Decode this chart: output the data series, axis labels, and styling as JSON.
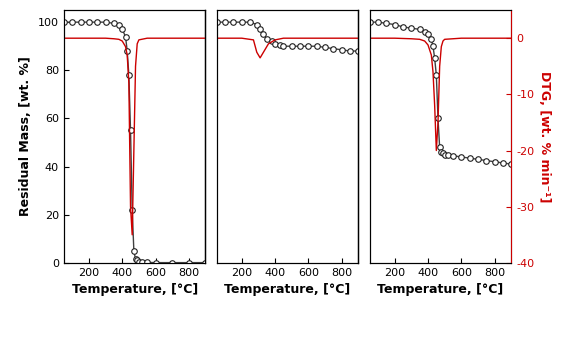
{
  "panel1_tga": {
    "x": [
      50,
      100,
      150,
      200,
      250,
      300,
      350,
      380,
      400,
      420,
      430,
      440,
      450,
      460,
      470,
      480,
      490,
      500,
      520,
      550,
      600,
      700,
      800,
      900
    ],
    "y": [
      100,
      100,
      100,
      100,
      100,
      100,
      99.5,
      99,
      97,
      94,
      88,
      78,
      55,
      22,
      5,
      1.5,
      1,
      0.5,
      0.3,
      0.2,
      0.1,
      0.1,
      0.1,
      0.1
    ]
  },
  "panel1_dtg": {
    "x": [
      50,
      100,
      200,
      300,
      350,
      380,
      400,
      420,
      430,
      440,
      450,
      460,
      470,
      480,
      490,
      500,
      550,
      600,
      700,
      800,
      900
    ],
    "y": [
      0,
      0,
      0,
      0,
      -0.1,
      -0.2,
      -0.5,
      -1.5,
      -3,
      -8,
      -30,
      -35,
      -20,
      -5,
      -1,
      -0.3,
      0,
      0,
      0,
      0,
      0
    ]
  },
  "panel2_tga": {
    "x": [
      50,
      100,
      150,
      200,
      250,
      290,
      310,
      330,
      350,
      380,
      400,
      430,
      450,
      500,
      550,
      600,
      650,
      700,
      750,
      800,
      850,
      900
    ],
    "y": [
      100,
      100,
      100,
      100,
      100,
      99,
      97,
      95,
      93,
      92,
      91,
      90.5,
      90,
      90,
      90,
      90,
      90,
      89.5,
      89,
      88.5,
      88,
      88
    ]
  },
  "panel2_dtg": {
    "x": [
      50,
      100,
      200,
      270,
      290,
      310,
      330,
      360,
      400,
      450,
      500,
      550,
      600,
      700,
      800,
      900
    ],
    "y": [
      0,
      0,
      0,
      -0.3,
      -2.5,
      -3.5,
      -2.5,
      -1,
      -0.3,
      0,
      0,
      0,
      0,
      0,
      0,
      0
    ]
  },
  "panel3_tga": {
    "x": [
      50,
      100,
      150,
      200,
      250,
      300,
      350,
      380,
      400,
      420,
      430,
      440,
      450,
      460,
      470,
      480,
      490,
      500,
      520,
      550,
      600,
      650,
      700,
      750,
      800,
      850,
      900
    ],
    "y": [
      100,
      100,
      99.5,
      99,
      98,
      97.5,
      97,
      96,
      95,
      93,
      90,
      85,
      78,
      60,
      48,
      46,
      45.5,
      45,
      45,
      44.5,
      44,
      43.5,
      43,
      42.5,
      42,
      41.5,
      41
    ]
  },
  "panel3_dtg": {
    "x": [
      50,
      100,
      200,
      300,
      350,
      380,
      400,
      420,
      430,
      440,
      450,
      460,
      470,
      480,
      490,
      500,
      550,
      600,
      700,
      800,
      900
    ],
    "y": [
      0,
      0,
      0,
      -0.1,
      -0.2,
      -0.5,
      -1.2,
      -3,
      -6,
      -12,
      -20,
      -15,
      -5,
      -1.5,
      -0.5,
      -0.2,
      -0.1,
      0,
      0,
      0,
      0
    ]
  },
  "tga_color": "#404040",
  "dtg_color": "#cc0000",
  "marker": "o",
  "markersize": 4,
  "markerfacecolor": "white",
  "markeredgecolor": "#202020",
  "xlim": [
    50,
    900
  ],
  "ylim_tga": [
    0,
    105
  ],
  "ylim_dtg": [
    -40,
    5
  ],
  "yticks_tga": [
    0,
    20,
    40,
    60,
    80,
    100
  ],
  "yticks_dtg": [
    -40,
    -30,
    -20,
    -10,
    0
  ],
  "xticks": [
    200,
    400,
    600,
    800
  ],
  "xlabel": "Temperature, [°C]",
  "ylabel_left": "Residual Mass, [wt. %]",
  "ylabel_right": "DTG, [wt. % min⁻¹]",
  "figsize": [
    5.81,
    3.37
  ],
  "dpi": 100
}
